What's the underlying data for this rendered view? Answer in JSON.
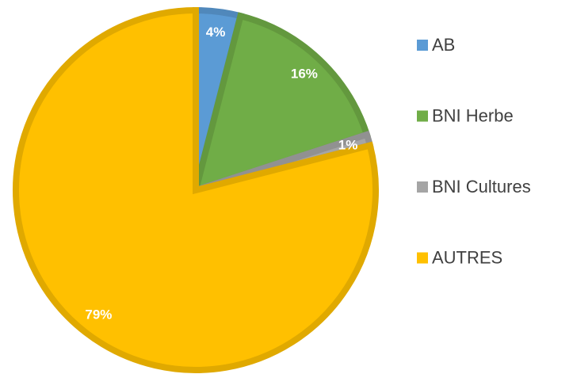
{
  "chart_data": {
    "type": "pie",
    "categories": [
      "AB",
      "BNI Herbe",
      "BNI Cultures",
      "AUTRES"
    ],
    "values": [
      4,
      16,
      1,
      79
    ],
    "value_labels": [
      "4%",
      "16%",
      "1%",
      "79%"
    ],
    "colors": [
      "#5b9bd5",
      "#70ad47",
      "#a5a5a5",
      "#ffc000"
    ],
    "start_angle": 0,
    "direction": "clockwise",
    "legend": "right"
  }
}
